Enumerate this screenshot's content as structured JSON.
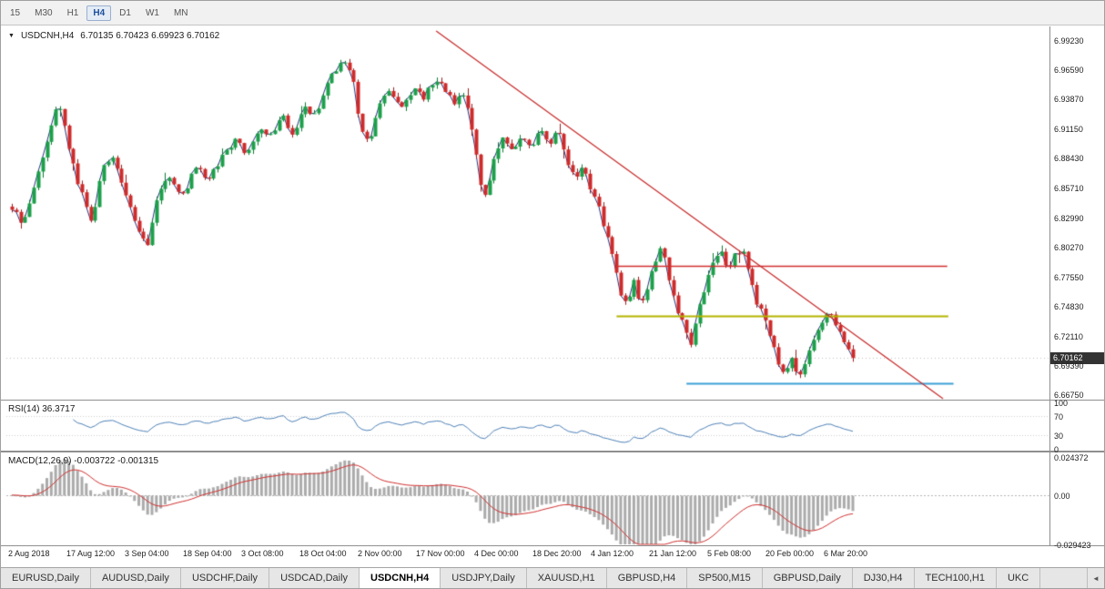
{
  "toolbar": {
    "timeframes": [
      "15",
      "M30",
      "H1",
      "H4",
      "D1",
      "W1",
      "MN"
    ],
    "active_timeframe": "H4"
  },
  "chart": {
    "title": "USDCNH,H4",
    "ohlc_text": "6.70135 6.70423 6.69923 6.70162",
    "current_price": "6.70162",
    "price_min": 6.6675,
    "price_max": 6.9923,
    "price_labels": [
      "6.99230",
      "6.96590",
      "6.93870",
      "6.91150",
      "6.88430",
      "6.85710",
      "6.82990",
      "6.80270",
      "6.77550",
      "6.74830",
      "6.72110",
      "6.69390",
      "6.66750"
    ],
    "time_labels": [
      "2 Aug 2018",
      "17 Aug 12:00",
      "3 Sep 04:00",
      "18 Sep 04:00",
      "3 Oct 08:00",
      "18 Oct 04:00",
      "2 Nov 00:00",
      "17 Nov 00:00",
      "4 Dec 00:00",
      "18 Dec 20:00",
      "4 Jan 12:00",
      "21 Jan 12:00",
      "5 Feb 08:00",
      "20 Feb 00:00",
      "6 Mar 20:00"
    ]
  },
  "chart_data": {
    "type": "candlestick",
    "symbol": "USDCNH",
    "timeframe": "H4",
    "candles_count": 193,
    "noise_amp": 0.003,
    "price_path": [
      [
        0,
        6.84
      ],
      [
        0.013,
        6.822
      ],
      [
        0.03,
        6.866
      ],
      [
        0.049,
        6.92
      ],
      [
        0.056,
        6.938
      ],
      [
        0.067,
        6.894
      ],
      [
        0.081,
        6.856
      ],
      [
        0.095,
        6.826
      ],
      [
        0.108,
        6.876
      ],
      [
        0.121,
        6.886
      ],
      [
        0.135,
        6.85
      ],
      [
        0.151,
        6.816
      ],
      [
        0.162,
        6.806
      ],
      [
        0.175,
        6.856
      ],
      [
        0.189,
        6.866
      ],
      [
        0.203,
        6.85
      ],
      [
        0.218,
        6.876
      ],
      [
        0.233,
        6.866
      ],
      [
        0.248,
        6.884
      ],
      [
        0.265,
        6.902
      ],
      [
        0.279,
        6.888
      ],
      [
        0.294,
        6.914
      ],
      [
        0.308,
        6.904
      ],
      [
        0.322,
        6.924
      ],
      [
        0.335,
        6.902
      ],
      [
        0.348,
        6.932
      ],
      [
        0.362,
        6.922
      ],
      [
        0.374,
        6.95
      ],
      [
        0.384,
        6.966
      ],
      [
        0.395,
        6.976
      ],
      [
        0.406,
        6.956
      ],
      [
        0.415,
        6.908
      ],
      [
        0.425,
        6.898
      ],
      [
        0.438,
        6.936
      ],
      [
        0.451,
        6.946
      ],
      [
        0.464,
        6.93
      ],
      [
        0.477,
        6.95
      ],
      [
        0.49,
        6.94
      ],
      [
        0.503,
        6.958
      ],
      [
        0.516,
        6.948
      ],
      [
        0.527,
        6.934
      ],
      [
        0.538,
        6.946
      ],
      [
        0.549,
        6.904
      ],
      [
        0.557,
        6.86
      ],
      [
        0.564,
        6.846
      ],
      [
        0.572,
        6.882
      ],
      [
        0.583,
        6.902
      ],
      [
        0.596,
        6.888
      ],
      [
        0.607,
        6.908
      ],
      [
        0.618,
        6.892
      ],
      [
        0.628,
        6.912
      ],
      [
        0.639,
        6.896
      ],
      [
        0.648,
        6.914
      ],
      [
        0.659,
        6.886
      ],
      [
        0.67,
        6.862
      ],
      [
        0.678,
        6.88
      ],
      [
        0.687,
        6.858
      ],
      [
        0.695,
        6.846
      ],
      [
        0.715,
        6.792
      ],
      [
        0.723,
        6.76
      ],
      [
        0.732,
        6.752
      ],
      [
        0.74,
        6.776
      ],
      [
        0.747,
        6.748
      ],
      [
        0.756,
        6.768
      ],
      [
        0.764,
        6.79
      ],
      [
        0.773,
        6.802
      ],
      [
        0.782,
        6.772
      ],
      [
        0.79,
        6.748
      ],
      [
        0.799,
        6.73
      ],
      [
        0.807,
        6.712
      ],
      [
        0.815,
        6.742
      ],
      [
        0.824,
        6.764
      ],
      [
        0.833,
        6.79
      ],
      [
        0.842,
        6.8
      ],
      [
        0.851,
        6.784
      ],
      [
        0.86,
        6.796
      ],
      [
        0.869,
        6.8
      ],
      [
        0.877,
        6.776
      ],
      [
        0.885,
        6.752
      ],
      [
        0.894,
        6.74
      ],
      [
        0.903,
        6.718
      ],
      [
        0.911,
        6.698
      ],
      [
        0.92,
        6.688
      ],
      [
        0.929,
        6.702
      ],
      [
        0.935,
        6.684
      ],
      [
        0.944,
        6.7
      ],
      [
        0.952,
        6.716
      ],
      [
        0.961,
        6.73
      ],
      [
        0.97,
        6.742
      ],
      [
        0.978,
        6.736
      ],
      [
        0.987,
        6.722
      ],
      [
        0.993,
        6.71
      ],
      [
        1,
        6.70162
      ]
    ],
    "trendline": {
      "x1f": 0.412,
      "p1": 7.0015,
      "x2f": 0.898,
      "p2": 6.6642,
      "color": "#c82828"
    },
    "hlines": [
      {
        "price": 6.786,
        "x1f": 0.585,
        "x2f": 0.902,
        "color": "#d22f2f",
        "width": 1.4
      },
      {
        "price": 6.74,
        "x1f": 0.585,
        "x2f": 0.903,
        "color": "#b4b400",
        "width": 2
      },
      {
        "price": 6.678,
        "x1f": 0.652,
        "x2f": 0.908,
        "color": "#3d9fd6",
        "width": 2
      }
    ],
    "colors": {
      "bull": "#1ca04a",
      "bear": "#cf2b2b",
      "bull_wick": "#0e7a33",
      "bear_wick": "#9e1f1f",
      "close_line": "#26337f",
      "rsi_line": "#4f82b8",
      "macd_hist": "#ababab",
      "macd_signal": "#d23030",
      "current_dotted": "#c0c0c0",
      "level_dotted": "#d0d0d0"
    }
  },
  "rsi": {
    "label": "RSI(14) 36.3717",
    "scale_labels": [
      "100",
      "70",
      "30",
      "0"
    ],
    "scale_values": [
      100,
      70,
      30,
      0
    ],
    "levels": [
      70,
      30
    ]
  },
  "macd": {
    "label": "MACD(12,26,9) -0.003722 -0.001315",
    "scale_labels": [
      "0.024372",
      "0.00",
      "-0.029423"
    ],
    "scale_values": [
      0.024372,
      0,
      -0.029423
    ],
    "max": 0.024372,
    "min": -0.029423
  },
  "tabs": {
    "items": [
      "EURUSD,Daily",
      "AUDUSD,Daily",
      "USDCHF,Daily",
      "USDCAD,Daily",
      "USDCNH,H4",
      "USDJPY,Daily",
      "XAUUSD,H1",
      "GBPUSD,H4",
      "SP500,M15",
      "GBPUSD,Daily",
      "DJ30,H4",
      "TECH100,H1",
      "UKC"
    ],
    "active": "USDCNH,H4",
    "scroll_arrow": "◄"
  }
}
